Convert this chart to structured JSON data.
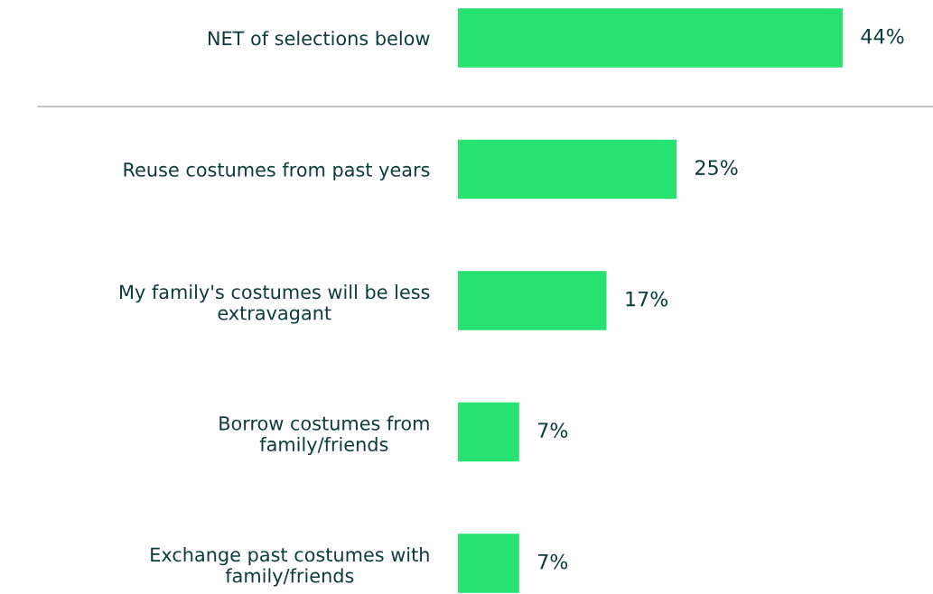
{
  "chart_data": {
    "type": "bar",
    "orientation": "horizontal",
    "categories": [
      "NET of selections below",
      "Reuse costumes from past years",
      "My family's costumes will be less\nextravagant",
      "Borrow costumes from\nfamily/friends",
      "Exchange past costumes with\nfamily/friends"
    ],
    "values": [
      44,
      25,
      17,
      7,
      7
    ],
    "color": "#26e271",
    "value_labels": [
      "44%",
      "25%",
      "17%",
      "7%",
      "7%"
    ],
    "grid": false,
    "legend": false,
    "tick_labels": "y"
  }
}
